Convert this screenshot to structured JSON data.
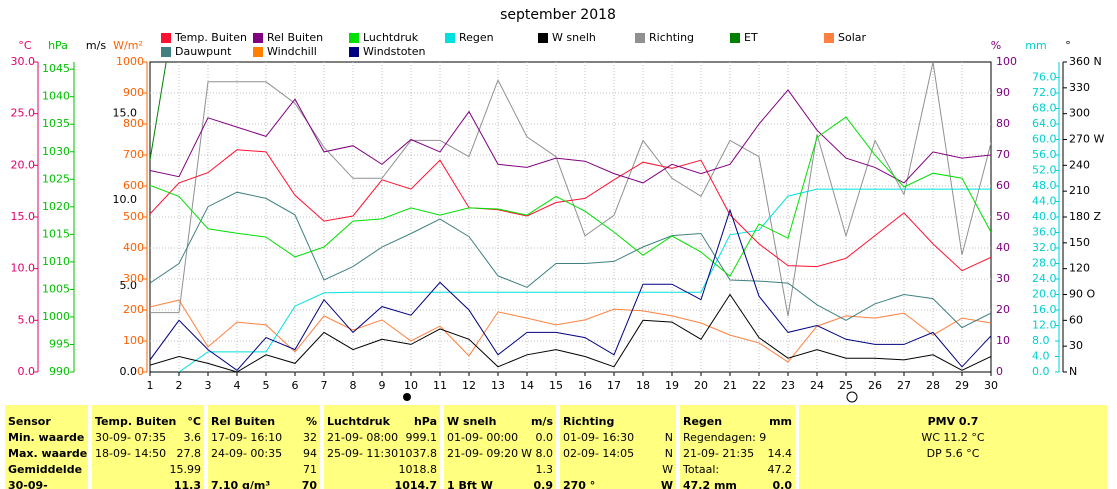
{
  "chart_data": {
    "type": "line",
    "title": "september 2018",
    "categories": [
      "1",
      "2",
      "3",
      "4",
      "5",
      "6",
      "7",
      "8",
      "9",
      "10",
      "11",
      "12",
      "13",
      "14",
      "15",
      "16",
      "17",
      "18",
      "19",
      "20",
      "21",
      "22",
      "23",
      "24",
      "25",
      "26",
      "27",
      "28",
      "29",
      "30"
    ],
    "grid": true,
    "axes": {
      "temp": {
        "label": "°C",
        "color": "#e0006c",
        "lim": [
          0,
          30
        ],
        "ticks": [
          {
            "value": 0,
            "label": "0.0"
          },
          {
            "value": 5,
            "label": "5.0"
          },
          {
            "value": 10,
            "label": "10.0"
          },
          {
            "value": 15,
            "label": "15.0"
          },
          {
            "value": 20,
            "label": "20.0"
          },
          {
            "value": 25,
            "label": "25.0"
          },
          {
            "value": 30,
            "label": "30.0"
          }
        ]
      },
      "hpa": {
        "label": "hPa",
        "color": "#00c000",
        "lim": [
          990,
          1046.3
        ],
        "ticks": [
          990,
          995,
          1000,
          1005,
          1010,
          1015,
          1020,
          1025,
          1030,
          1035,
          1040,
          1045
        ]
      },
      "ms": {
        "label": "m/s",
        "color": "#000000",
        "lim": [
          0,
          18
        ],
        "ticks": [
          {
            "value": 0,
            "label": "0.0"
          },
          {
            "value": 5,
            "label": "5.0"
          },
          {
            "value": 10,
            "label": "10.0"
          },
          {
            "value": 15,
            "label": "15.0"
          }
        ]
      },
      "wm2": {
        "label": "W/m²",
        "color": "#ff6000",
        "lim": [
          0,
          1000
        ],
        "ticks": [
          0,
          100,
          200,
          300,
          400,
          500,
          600,
          700,
          800,
          900,
          1000
        ]
      },
      "pct": {
        "label": "%",
        "color": "#800080",
        "lim": [
          0,
          100
        ],
        "ticks": [
          0,
          10,
          20,
          30,
          40,
          50,
          60,
          70,
          80,
          90,
          100
        ]
      },
      "mm": {
        "label": "mm",
        "color": "#00d0d0",
        "lim": [
          0,
          80
        ],
        "ticks": [
          {
            "value": 0,
            "label": "0.0"
          },
          {
            "value": 4,
            "label": "4.0"
          },
          {
            "value": 8,
            "label": "8.0"
          },
          {
            "value": 12,
            "label": "12.0"
          },
          {
            "value": 16,
            "label": "16.0"
          },
          {
            "value": 20,
            "label": "20.0"
          },
          {
            "value": 24,
            "label": "24.0"
          },
          {
            "value": 28,
            "label": "28.0"
          },
          {
            "value": 32,
            "label": "32.0"
          },
          {
            "value": 36,
            "label": "36.0"
          },
          {
            "value": 40,
            "label": "40.0"
          },
          {
            "value": 44,
            "label": "44.0"
          },
          {
            "value": 48,
            "label": "48.0"
          },
          {
            "value": 52,
            "label": "52.0"
          },
          {
            "value": 56,
            "label": "56.0"
          },
          {
            "value": 60,
            "label": "60.0"
          },
          {
            "value": 64,
            "label": "64.0"
          },
          {
            "value": 68,
            "label": "68.0"
          },
          {
            "value": 72,
            "label": "72.0"
          },
          {
            "value": 76,
            "label": "76.0"
          }
        ]
      },
      "deg": {
        "label": "°",
        "color": "#000000",
        "lim": [
          0,
          360
        ],
        "ticks": [
          {
            "value": 0,
            "label": "N"
          },
          30,
          60,
          {
            "value": 90,
            "label": "90 O"
          },
          120,
          150,
          {
            "value": 180,
            "label": "180 Z"
          },
          210,
          240,
          {
            "value": 270,
            "label": "270 W"
          },
          300,
          330,
          {
            "value": 360,
            "label": "360 N"
          }
        ]
      }
    },
    "series": [
      {
        "name": "Temp. Buiten",
        "color": "#ff1030",
        "axis": "temp",
        "values": [
          15.3,
          18.3,
          19.3,
          21.5,
          21.3,
          17.1,
          14.6,
          15.1,
          18.6,
          17.7,
          20.5,
          15.9,
          15.7,
          15.1,
          16.4,
          16.8,
          18.6,
          20.3,
          19.7,
          20.5,
          15.2,
          12.4,
          10.3,
          10.2,
          11.0,
          13.2,
          15.4,
          12.4,
          9.8,
          11.1
        ]
      },
      {
        "name": "Rel Buiten",
        "color": "#800080",
        "axis": "pct",
        "values": [
          65,
          63,
          82,
          79,
          76,
          88,
          71,
          73,
          67,
          75,
          71,
          84,
          67,
          66,
          69,
          68,
          64,
          61,
          67,
          64,
          67,
          80,
          91,
          78,
          69,
          66,
          61,
          71,
          69,
          70
        ]
      },
      {
        "name": "Luchtdruk",
        "color": "#00e000",
        "axis": "hpa",
        "values": [
          1023.9,
          1021.9,
          1016.0,
          1015.2,
          1014.5,
          1010.9,
          1012.7,
          1017.4,
          1017.8,
          1019.8,
          1018.5,
          1019.8,
          1019.6,
          1018.5,
          1021.9,
          1019.2,
          1015.4,
          1011.2,
          1014.7,
          1011.8,
          1007.4,
          1016.9,
          1014.3,
          1032.6,
          1036.3,
          1029.4,
          1023.6,
          1026.1,
          1025.2,
          1015.4
        ]
      },
      {
        "name": "Regen",
        "color": "#00e0e0",
        "axis": "mm",
        "values": [
          null,
          0,
          5.2,
          5.2,
          5.2,
          17.0,
          20.4,
          20.6,
          20.6,
          20.6,
          20.6,
          20.6,
          20.6,
          20.6,
          20.6,
          20.6,
          20.6,
          20.6,
          20.6,
          20.6,
          35.4,
          36.6,
          45.4,
          47.2,
          47.2,
          47.2,
          47.2,
          47.2,
          47.2,
          47.2
        ]
      },
      {
        "name": "W snelh",
        "color": "#000000",
        "axis": "ms",
        "values": [
          0.4,
          0.9,
          0.5,
          0.0,
          1.0,
          0.5,
          2.3,
          1.3,
          1.9,
          1.6,
          2.5,
          1.9,
          0.3,
          1.0,
          1.3,
          0.9,
          0.3,
          3.0,
          2.9,
          1.9,
          4.5,
          2.0,
          0.8,
          1.3,
          0.8,
          0.8,
          0.7,
          1.0,
          0.1,
          0.9
        ]
      },
      {
        "name": "Richting",
        "color": "#909090",
        "axis": "deg",
        "values": [
          69,
          69,
          337,
          337,
          337,
          312,
          261,
          225,
          225,
          269,
          269,
          250,
          339,
          273,
          250,
          158,
          182,
          269,
          225,
          204,
          269,
          250,
          65,
          276,
          158,
          269,
          206,
          360,
          136,
          266
        ]
      },
      {
        "name": "ET",
        "color": "#008000",
        "axis": "mm",
        "values": [
          54.7,
          100,
          null,
          null,
          null,
          null,
          null,
          null,
          null,
          null,
          null,
          null,
          null,
          null,
          null,
          null,
          null,
          null,
          null,
          null,
          null,
          null,
          null,
          null,
          null,
          null,
          null,
          null,
          null,
          null
        ]
      },
      {
        "name": "Solar",
        "color": "#ff8040",
        "axis": "wm2",
        "values": [
          210,
          232,
          81,
          161,
          152,
          65,
          181,
          135,
          168,
          100,
          148,
          52,
          194,
          174,
          152,
          168,
          203,
          197,
          181,
          158,
          119,
          94,
          32,
          148,
          181,
          174,
          190,
          119,
          174,
          158
        ]
      },
      {
        "name": "Dauwpunt",
        "color": "#408080",
        "axis": "temp",
        "values": [
          8.6,
          10.5,
          16.0,
          17.4,
          16.8,
          15.2,
          8.9,
          10.2,
          12.1,
          13.4,
          14.8,
          13.1,
          9.3,
          8.2,
          10.5,
          10.5,
          10.7,
          12.1,
          13.2,
          13.4,
          8.9,
          8.8,
          8.6,
          6.5,
          5.0,
          6.6,
          7.5,
          7.1,
          4.3,
          5.7
        ]
      },
      {
        "name": "Windchill",
        "color": "#ff8000",
        "axis": "temp",
        "values": [
          null,
          null,
          null,
          null,
          null,
          null,
          null,
          null,
          null,
          null,
          null,
          null,
          null,
          null,
          null,
          null,
          null,
          null,
          null,
          null,
          null,
          null,
          null,
          null,
          null,
          null,
          null,
          null,
          null,
          null
        ]
      },
      {
        "name": "Windstoten",
        "color": "#000080",
        "axis": "ms",
        "values": [
          0.7,
          3.0,
          1.3,
          0.1,
          2.0,
          1.3,
          4.2,
          2.3,
          3.8,
          3.3,
          5.2,
          3.6,
          1.0,
          2.3,
          2.3,
          2.0,
          1.0,
          5.1,
          5.1,
          4.2,
          9.4,
          4.4,
          2.3,
          2.7,
          1.9,
          1.6,
          1.6,
          2.3,
          0.3,
          2.1
        ]
      }
    ]
  },
  "table": {
    "rows": [
      [
        [
          "Sensor"
        ],
        [
          "Temp. Buiten",
          "°C"
        ],
        [
          "Rel Buiten",
          "%"
        ],
        [
          "Luchtdruk",
          "hPa"
        ],
        [
          "W snelh",
          "m/s"
        ],
        [
          "Richting"
        ],
        [
          "Regen",
          "mm"
        ],
        [
          "PMV 0.7"
        ]
      ],
      [
        [
          "Min. waarde"
        ],
        [
          "30-09- 07:35",
          "3.6"
        ],
        [
          "17-09- 16:10",
          "32"
        ],
        [
          "21-09- 08:00",
          "999.1"
        ],
        [
          "01-09- 00:00",
          "0.0"
        ],
        [
          "01-09- 16:30",
          "N"
        ],
        [
          "Regendagen: 9"
        ],
        [
          "WC 11.2 °C"
        ]
      ],
      [
        [
          "Max. waarde"
        ],
        [
          "18-09- 14:50",
          "27.8"
        ],
        [
          "24-09- 00:35",
          "94"
        ],
        [
          "25-09- 11:30",
          "1037.8"
        ],
        [
          "21-09- 09:20",
          "W 8.0"
        ],
        [
          "02-09- 14:05",
          "N"
        ],
        [
          "21-09- 21:35",
          "14.4"
        ],
        [
          "DP 5.6 °C"
        ]
      ],
      [
        [
          "Gemiddelde"
        ],
        [
          "15.99"
        ],
        [
          "71"
        ],
        [
          "1018.8"
        ],
        [
          "1.3"
        ],
        [
          "W"
        ],
        [
          "Totaal:",
          "47.2"
        ],
        []
      ],
      [
        [
          "30-09-"
        ],
        [
          "11.3"
        ],
        [
          "7.10 g/m³",
          "70"
        ],
        [
          "1014.7"
        ],
        [
          "1 Bft W",
          "0.9"
        ],
        [
          "270 °",
          "W"
        ],
        [
          "47.2 mm",
          "0.0"
        ],
        []
      ]
    ]
  }
}
